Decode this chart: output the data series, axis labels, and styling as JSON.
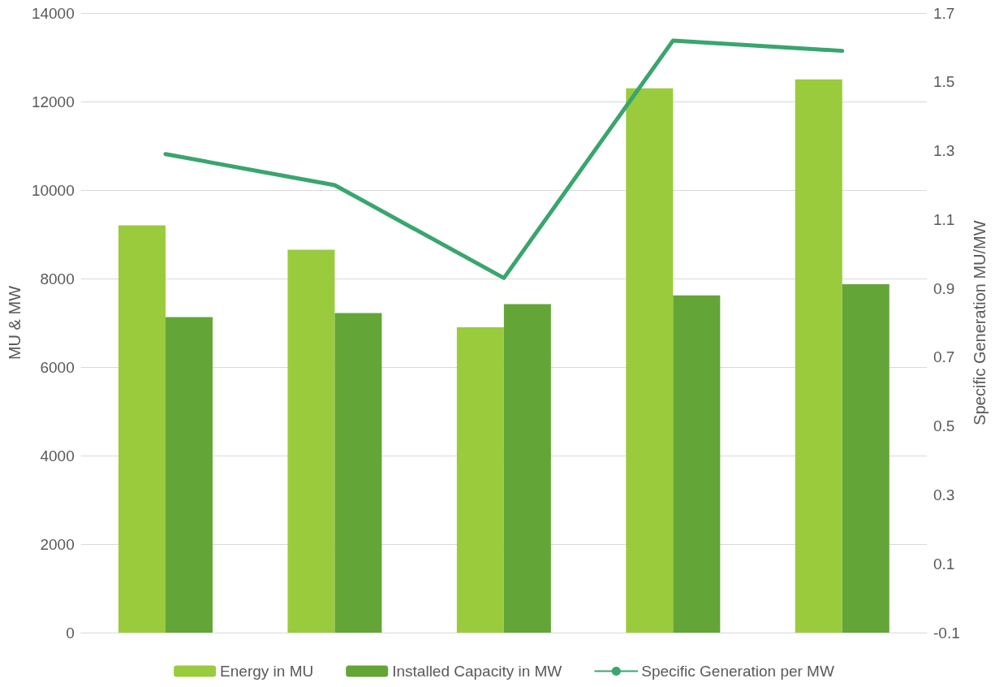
{
  "chart_data": {
    "type": "bar",
    "ylabel": "MU & MW",
    "y2label": "Specific Generation MU/MW",
    "categories": [
      null,
      null,
      null,
      null,
      null
    ],
    "series": [
      {
        "name": "Energy in MU",
        "color": "#9acb3c",
        "values": [
          9200,
          8650,
          6900,
          12300,
          12500
        ]
      },
      {
        "name": "Installed Capacity in MW",
        "color": "#63a537",
        "values": [
          7130,
          7220,
          7420,
          7620,
          7870
        ]
      },
      {
        "name": "Specific Generation per MW",
        "type": "line",
        "axis": "y2",
        "color": "#3aa56e",
        "values": [
          1.29,
          1.2,
          0.93,
          1.62,
          1.59
        ]
      }
    ],
    "ylim": [
      0,
      14000
    ],
    "yticks": [
      0,
      2000,
      4000,
      6000,
      8000,
      10000,
      12000,
      14000
    ],
    "y2lim": [
      -0.1,
      1.7
    ],
    "y2ticks": [
      -0.1,
      0.1,
      0.3,
      0.5,
      0.7,
      0.9,
      1.1,
      1.3,
      1.5,
      1.7
    ],
    "grid": "y",
    "legend": "bottom",
    "marker": "none",
    "line_style": "solid"
  }
}
